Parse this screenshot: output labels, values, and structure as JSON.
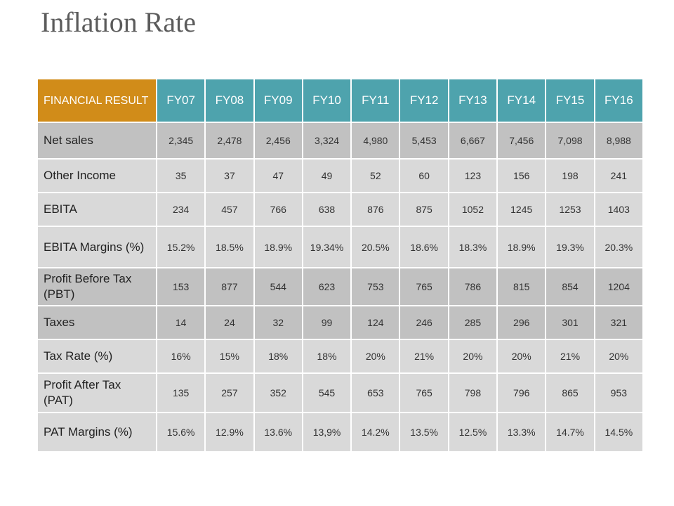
{
  "title": "Inflation Rate",
  "colors": {
    "header_label_bg": "#d18c19",
    "header_year_bg": "#4ea3ad",
    "row_light_bg": "#d9d9d9",
    "row_dark_bg": "#c1c1c1"
  },
  "table": {
    "corner_label": "FINANCIAL RESULT",
    "years": [
      "FY07",
      "FY08",
      "FY09",
      "FY10",
      "FY11",
      "FY12",
      "FY13",
      "FY14",
      "FY15",
      "FY16"
    ],
    "rows": [
      {
        "label": "Net sales",
        "shade": "dark",
        "values": [
          "2,345",
          "2,478",
          "2,456",
          "3,324",
          "4,980",
          "5,453",
          "6,667",
          "7,456",
          "7,098",
          "8,988"
        ]
      },
      {
        "label": "Other Income",
        "shade": "light",
        "values": [
          "35",
          "37",
          "47",
          "49",
          "52",
          "60",
          "123",
          "156",
          "198",
          "241"
        ]
      },
      {
        "label": "EBITA",
        "shade": "light",
        "values": [
          "234",
          "457",
          "766",
          "638",
          "876",
          "875",
          "1052",
          "1245",
          "1253",
          "1403"
        ]
      },
      {
        "label": "EBITA Margins (%)",
        "shade": "light",
        "values": [
          "15.2%",
          "18.5%",
          "18.9%",
          "19.34%",
          "20.5%",
          "18.6%",
          "18.3%",
          "18.9%",
          "19.3%",
          "20.3%"
        ]
      },
      {
        "label": "Profit Before Tax (PBT)",
        "shade": "dark",
        "values": [
          "153",
          "877",
          "544",
          "623",
          "753",
          "765",
          "786",
          "815",
          "854",
          "1204"
        ]
      },
      {
        "label": "Taxes",
        "shade": "dark",
        "values": [
          "14",
          "24",
          "32",
          "99",
          "124",
          "246",
          "285",
          "296",
          "301",
          "321"
        ]
      },
      {
        "label": "Tax Rate (%)",
        "shade": "light",
        "values": [
          "16%",
          "15%",
          "18%",
          "18%",
          "20%",
          "21%",
          "20%",
          "20%",
          "21%",
          "20%"
        ]
      },
      {
        "label": "Profit After Tax (PAT)",
        "shade": "light",
        "values": [
          "135",
          "257",
          "352",
          "545",
          "653",
          "765",
          "798",
          "796",
          "865",
          "953"
        ]
      },
      {
        "label": "PAT Margins (%)",
        "shade": "light",
        "values": [
          "15.6%",
          "12.9%",
          "13.6%",
          "13,9%",
          "14.2%",
          "13.5%",
          "12.5%",
          "13.3%",
          "14.7%",
          "14.5%"
        ]
      }
    ]
  }
}
